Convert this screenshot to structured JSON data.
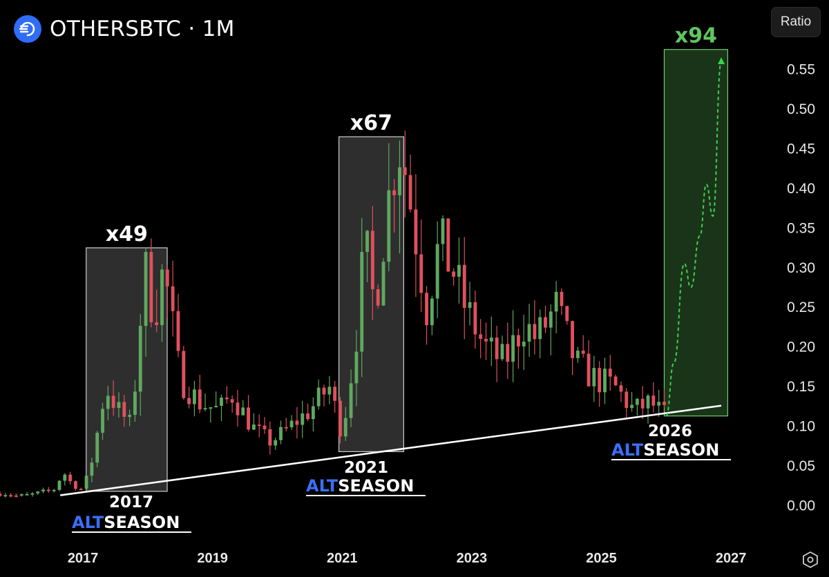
{
  "header": {
    "title": "OTHERSBTC · 1M",
    "scale_button": "Ratio"
  },
  "icons": {
    "logo": "logo-icon",
    "settings": "settings-hexagon-icon"
  },
  "colors": {
    "up": "#5fa85f",
    "down": "#e0505e",
    "trendline": "#ffffff",
    "box_gray": "#3a3a3a",
    "box_green": "#1f3d1f",
    "projection": "#3fd14a",
    "alt_blue": "#3b6ff5"
  },
  "chart_data": {
    "type": "candlestick",
    "timeframe": "1M",
    "x_ticks": [
      "2017",
      "2019",
      "2021",
      "2023",
      "2025",
      "2027"
    ],
    "y_ticks": [
      "0.55",
      "0.50",
      "0.45",
      "0.40",
      "0.35",
      "0.30",
      "0.25",
      "0.20",
      "0.15",
      "0.10",
      "0.05",
      "0.00"
    ],
    "ylim": [
      -0.05,
      0.62
    ],
    "xlim": [
      2015.72,
      2027.5
    ],
    "close_series": [
      {
        "t": 2015.8,
        "c": 0.015
      },
      {
        "t": 2016.0,
        "c": 0.012
      },
      {
        "t": 2016.2,
        "c": 0.014
      },
      {
        "t": 2016.4,
        "c": 0.018
      },
      {
        "t": 2016.55,
        "c": 0.02
      },
      {
        "t": 2016.7,
        "c": 0.042
      },
      {
        "t": 2016.85,
        "c": 0.025
      },
      {
        "t": 2017.0,
        "c": 0.02
      },
      {
        "t": 2017.15,
        "c": 0.06
      },
      {
        "t": 2017.35,
        "c": 0.15
      },
      {
        "t": 2017.55,
        "c": 0.12
      },
      {
        "t": 2017.75,
        "c": 0.1
      },
      {
        "t": 2017.95,
        "c": 0.3
      },
      {
        "t": 2018.1,
        "c": 0.24
      },
      {
        "t": 2018.25,
        "c": 0.3
      },
      {
        "t": 2018.5,
        "c": 0.16
      },
      {
        "t": 2018.8,
        "c": 0.13
      },
      {
        "t": 2019.1,
        "c": 0.12
      },
      {
        "t": 2019.3,
        "c": 0.14
      },
      {
        "t": 2019.6,
        "c": 0.1
      },
      {
        "t": 2019.9,
        "c": 0.08
      },
      {
        "t": 2020.2,
        "c": 0.1
      },
      {
        "t": 2020.5,
        "c": 0.12
      },
      {
        "t": 2020.8,
        "c": 0.15
      },
      {
        "t": 2021.0,
        "c": 0.09
      },
      {
        "t": 2021.2,
        "c": 0.2
      },
      {
        "t": 2021.35,
        "c": 0.33
      },
      {
        "t": 2021.5,
        "c": 0.25
      },
      {
        "t": 2021.65,
        "c": 0.35
      },
      {
        "t": 2021.8,
        "c": 0.43
      },
      {
        "t": 2021.9,
        "c": 0.46
      },
      {
        "t": 2022.1,
        "c": 0.36
      },
      {
        "t": 2022.3,
        "c": 0.25
      },
      {
        "t": 2022.5,
        "c": 0.33
      },
      {
        "t": 2022.7,
        "c": 0.3
      },
      {
        "t": 2022.9,
        "c": 0.25
      },
      {
        "t": 2023.2,
        "c": 0.2
      },
      {
        "t": 2023.5,
        "c": 0.18
      },
      {
        "t": 2023.8,
        "c": 0.23
      },
      {
        "t": 2024.0,
        "c": 0.21
      },
      {
        "t": 2024.3,
        "c": 0.25
      },
      {
        "t": 2024.6,
        "c": 0.18
      },
      {
        "t": 2024.9,
        "c": 0.16
      },
      {
        "t": 2025.2,
        "c": 0.15
      },
      {
        "t": 2025.5,
        "c": 0.12
      },
      {
        "t": 2025.75,
        "c": 0.13
      },
      {
        "t": 2025.95,
        "c": 0.115
      }
    ],
    "trendline": {
      "from": {
        "t": 2016.65,
        "v": 0.013
      },
      "to": {
        "t": 2026.85,
        "v": 0.126
      }
    },
    "projection_path": [
      {
        "t": 2026.0,
        "v": 0.113
      },
      {
        "t": 2026.12,
        "v": 0.18
      },
      {
        "t": 2026.28,
        "v": 0.305
      },
      {
        "t": 2026.38,
        "v": 0.275
      },
      {
        "t": 2026.52,
        "v": 0.34
      },
      {
        "t": 2026.62,
        "v": 0.405
      },
      {
        "t": 2026.72,
        "v": 0.365
      },
      {
        "t": 2026.85,
        "v": 0.56
      }
    ],
    "boxes": [
      {
        "label": "x49",
        "t0": 2017.05,
        "t1": 2018.3,
        "v0": 0.018,
        "v1": 0.325,
        "style": "gray"
      },
      {
        "label": "x67",
        "t0": 2020.95,
        "t1": 2021.95,
        "v0": 0.068,
        "v1": 0.465,
        "style": "gray"
      },
      {
        "label": "x94",
        "t0": 2025.97,
        "t1": 2026.95,
        "v0": 0.113,
        "v1": 0.575,
        "style": "green"
      }
    ],
    "season_labels": [
      {
        "year": "2017",
        "alt": "ALT",
        "season": "SEASON"
      },
      {
        "year": "2021",
        "alt": "ALT",
        "season": "SEASON"
      },
      {
        "year": "2026",
        "alt": "ALT",
        "season": "SEASON"
      }
    ]
  }
}
